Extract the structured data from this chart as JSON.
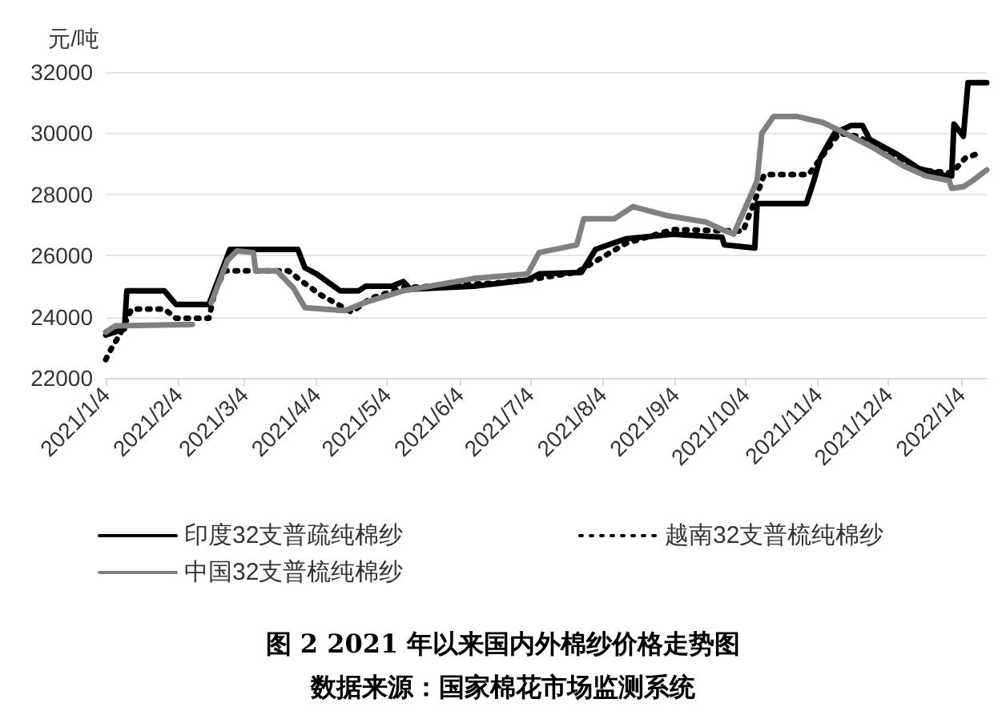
{
  "chart_data": {
    "type": "line",
    "title": "图 2 2021 年以来国内外棉纱价格走势图",
    "ylabel": "元/吨",
    "annotations": [
      "数据来源：国家棉花市场监测系统"
    ],
    "xlim": [
      "2021-01-04",
      "2022-01-15"
    ],
    "xticks": [
      {
        "value": "2021-01-04",
        "label": "2021/1/4"
      },
      {
        "value": "2021-02-04",
        "label": "2021/2/4"
      },
      {
        "value": "2021-03-04",
        "label": "2021/3/4"
      },
      {
        "value": "2021-04-04",
        "label": "2021/4/4"
      },
      {
        "value": "2021-05-04",
        "label": "2021/5/4"
      },
      {
        "value": "2021-06-04",
        "label": "2021/6/4"
      },
      {
        "value": "2021-07-04",
        "label": "2021/7/4"
      },
      {
        "value": "2021-08-04",
        "label": "2021/8/4"
      },
      {
        "value": "2021-09-04",
        "label": "2021/9/4"
      },
      {
        "value": "2021-10-04",
        "label": "2021/10/4"
      },
      {
        "value": "2021-11-04",
        "label": "2021/11/4"
      },
      {
        "value": "2021-12-04",
        "label": "2021/12/4"
      },
      {
        "value": "2022-01-04",
        "label": "2022/1/4"
      }
    ],
    "ylim": [
      22000,
      32000
    ],
    "yticks": [
      22000,
      24000,
      26000,
      28000,
      30000,
      32000
    ],
    "grid": "y",
    "legend": "bottom",
    "marker": "none",
    "series": [
      {
        "name": "印度32支普疏纯棉纱",
        "color": "#000000",
        "line_style": "solid",
        "x": [
          "2021-01-04",
          "2021-01-12",
          "2021-01-13",
          "2021-01-29",
          "2021-02-03",
          "2021-02-17",
          "2021-02-26",
          "2021-03-27",
          "2021-03-30",
          "2021-04-04",
          "2021-04-14",
          "2021-04-22",
          "2021-04-25",
          "2021-05-06",
          "2021-05-11",
          "2021-05-14",
          "2021-06-10",
          "2021-07-03",
          "2021-07-08",
          "2021-07-26",
          "2021-08-01",
          "2021-08-14",
          "2021-09-03",
          "2021-09-24",
          "2021-09-25",
          "2021-10-08",
          "2021-10-09",
          "2021-10-30",
          "2021-11-02",
          "2021-11-05",
          "2021-11-11",
          "2021-11-18",
          "2021-11-23",
          "2021-11-26",
          "2021-12-08",
          "2021-12-17",
          "2021-12-29",
          "2021-12-31",
          "2022-01-01",
          "2022-01-05",
          "2022-01-07",
          "2022-01-15"
        ],
        "values": [
          23400,
          23600,
          24850,
          24850,
          24400,
          24400,
          26200,
          26200,
          25600,
          25400,
          24850,
          24850,
          25000,
          25000,
          25150,
          24900,
          25000,
          25200,
          25400,
          25450,
          26200,
          26550,
          26700,
          26600,
          26350,
          26250,
          27700,
          27700,
          28400,
          29200,
          30000,
          30250,
          30250,
          29800,
          29300,
          28850,
          28600,
          28600,
          30300,
          29900,
          31650,
          31650
        ]
      },
      {
        "name": "越南32支普梳纯棉纱",
        "color": "#000000",
        "line_style": "dotted",
        "x": [
          "2021-01-04",
          "2021-01-07",
          "2021-01-10",
          "2021-01-15",
          "2021-01-29",
          "2021-02-03",
          "2021-02-17",
          "2021-02-20",
          "2021-02-24",
          "2021-03-23",
          "2021-03-28",
          "2021-04-06",
          "2021-04-12",
          "2021-04-19",
          "2021-04-27",
          "2021-05-11",
          "2021-06-19",
          "2021-07-03",
          "2021-07-24",
          "2021-08-14",
          "2021-09-03",
          "2021-10-03",
          "2021-10-09",
          "2021-10-12",
          "2021-10-31",
          "2021-11-13",
          "2021-11-21",
          "2021-12-17",
          "2021-12-31",
          "2022-01-03",
          "2022-01-06",
          "2022-01-10"
        ],
        "values": [
          22600,
          23050,
          23400,
          24250,
          24250,
          23950,
          23950,
          24950,
          25500,
          25500,
          25200,
          24700,
          24450,
          24150,
          24600,
          24950,
          25100,
          25200,
          25450,
          26400,
          26850,
          26800,
          28000,
          28650,
          28650,
          30000,
          29900,
          28800,
          28700,
          28950,
          29200,
          29300
        ]
      },
      {
        "name": "中国32支普梳纯棉纱",
        "color": "#808080",
        "line_style": "solid",
        "x": [
          "2021-01-04",
          "2021-01-08",
          "2021-02-10",
          "2021-02-14",
          "2021-02-18",
          "2021-02-25",
          "2021-03-01",
          "2021-03-08",
          "2021-03-09",
          "2021-03-18",
          "2021-03-25",
          "2021-03-30",
          "2021-04-16",
          "2021-04-24",
          "2021-05-11",
          "2021-06-10",
          "2021-07-03",
          "2021-07-08",
          "2021-07-24",
          "2021-07-27",
          "2021-08-09",
          "2021-08-17",
          "2021-09-01",
          "2021-09-17",
          "2021-09-24",
          "2021-09-29",
          "2021-10-01",
          "2021-10-09",
          "2021-10-11",
          "2021-10-16",
          "2021-10-26",
          "2021-11-06",
          "2021-11-13",
          "2021-11-27",
          "2021-12-10",
          "2021-12-20",
          "2021-12-30",
          "2021-12-31",
          "2022-01-05",
          "2022-01-09",
          "2022-01-15"
        ],
        "values": [
          23500,
          23700,
          23750,
          null,
          24450,
          25850,
          26150,
          26100,
          25500,
          25500,
          24950,
          24300,
          24200,
          24450,
          24850,
          25250,
          25400,
          26100,
          26350,
          27200,
          27200,
          27600,
          27300,
          27100,
          26850,
          26700,
          27050,
          28450,
          30000,
          30550,
          30550,
          30350,
          30100,
          29550,
          28950,
          28600,
          28450,
          28200,
          28250,
          28450,
          28800
        ]
      }
    ]
  }
}
